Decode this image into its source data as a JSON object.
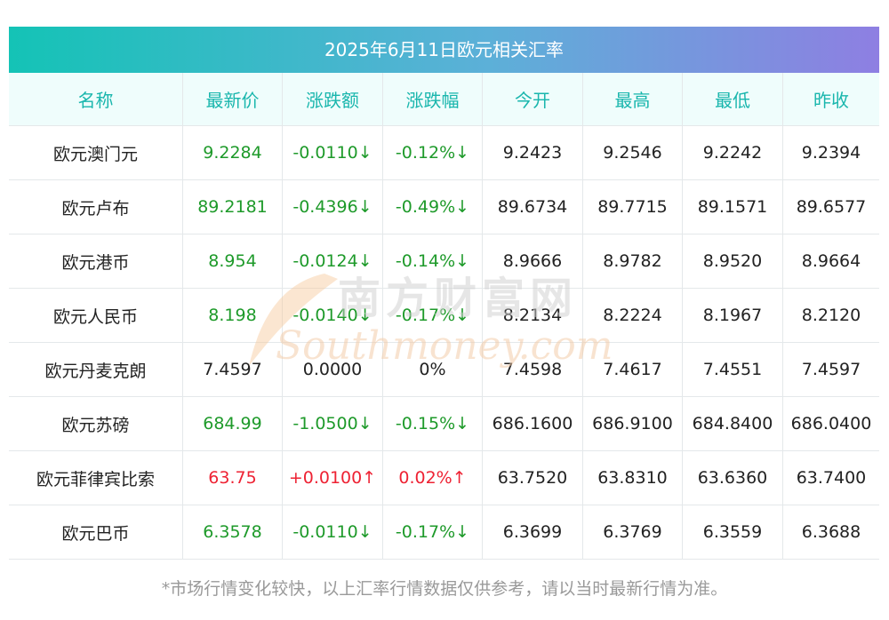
{
  "title": "2025年6月11日欧元相关汇率",
  "headers": [
    "名称",
    "最新价",
    "涨跌额",
    "涨跌幅",
    "今开",
    "最高",
    "最低",
    "昨收"
  ],
  "rows": [
    {
      "name": "欧元澳门元",
      "latest": "9.2284",
      "change": "-0.0110↓",
      "pct": "-0.12%↓",
      "open": "9.2423",
      "high": "9.2546",
      "low": "9.2242",
      "prev": "9.2394",
      "trend": "down"
    },
    {
      "name": "欧元卢布",
      "latest": "89.2181",
      "change": "-0.4396↓",
      "pct": "-0.49%↓",
      "open": "89.6734",
      "high": "89.7715",
      "low": "89.1571",
      "prev": "89.6577",
      "trend": "down"
    },
    {
      "name": "欧元港币",
      "latest": "8.954",
      "change": "-0.0124↓",
      "pct": "-0.14%↓",
      "open": "8.9666",
      "high": "8.9782",
      "low": "8.9520",
      "prev": "8.9664",
      "trend": "down"
    },
    {
      "name": "欧元人民币",
      "latest": "8.198",
      "change": "-0.0140↓",
      "pct": "-0.17%↓",
      "open": "8.2134",
      "high": "8.2224",
      "low": "8.1967",
      "prev": "8.2120",
      "trend": "down"
    },
    {
      "name": "欧元丹麦克朗",
      "latest": "7.4597",
      "change": "0.0000",
      "pct": "0%",
      "open": "7.4598",
      "high": "7.4617",
      "low": "7.4551",
      "prev": "7.4597",
      "trend": "flat"
    },
    {
      "name": "欧元苏磅",
      "latest": "684.99",
      "change": "-1.0500↓",
      "pct": "-0.15%↓",
      "open": "686.1600",
      "high": "686.9100",
      "low": "684.8400",
      "prev": "686.0400",
      "trend": "down"
    },
    {
      "name": "欧元菲律宾比索",
      "latest": "63.75",
      "change": "+0.0100↑",
      "pct": "0.02%↑",
      "open": "63.7520",
      "high": "63.8310",
      "low": "63.6360",
      "prev": "63.7400",
      "trend": "up"
    },
    {
      "name": "欧元巴币",
      "latest": "6.3578",
      "change": "-0.0110↓",
      "pct": "-0.17%↓",
      "open": "6.3699",
      "high": "6.3769",
      "low": "6.3559",
      "prev": "6.3688",
      "trend": "down"
    }
  ],
  "watermark": {
    "cn": "南方财富网",
    "en": "Southmoney.com"
  },
  "footer": "*市场行情变化较快，以上汇率行情数据仅供参考，请以当时最新行情为准。",
  "colors": {
    "accent": "#19b6ad",
    "down": "#1e9a2a",
    "up": "#ee2233",
    "gradient_start": "#14c3b6",
    "gradient_end": "#8e7fe2"
  }
}
